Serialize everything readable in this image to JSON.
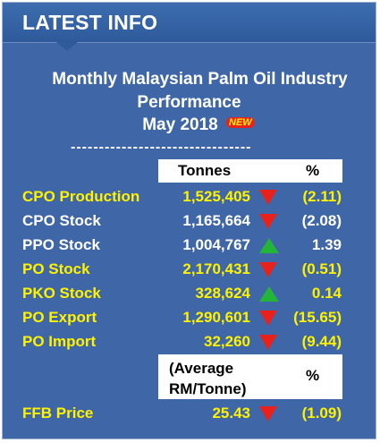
{
  "header": {
    "title": "LATEST INFO"
  },
  "report": {
    "title_line1": "Monthly Malaysian Palm Oil Industry",
    "title_line2": "Performance",
    "title_line3": "May 2018",
    "badge": "NEW",
    "divider": "--------------------------------"
  },
  "table": {
    "col_tonnes": "Tonnes",
    "col_pct": "%",
    "rows": [
      {
        "label": "CPO Production",
        "value": "1,525,405",
        "pct": "(2.11)",
        "trend": "down",
        "color": "#fff200"
      },
      {
        "label": "CPO Stock",
        "value": "1,165,664",
        "pct": "(2.08)",
        "trend": "down",
        "color": "#ffffff"
      },
      {
        "label": "PPO Stock",
        "value": "1,004,767",
        "pct": "1.39",
        "trend": "up",
        "color": "#ffffff"
      },
      {
        "label": "PO Stock",
        "value": "2,170,431",
        "pct": "(0.51)",
        "trend": "down",
        "color": "#fff200"
      },
      {
        "label": "PKO Stock",
        "value": "328,624",
        "pct": "0.14",
        "trend": "up",
        "color": "#fff200"
      },
      {
        "label": "PO Export",
        "value": "1,290,601",
        "pct": "(15.65)",
        "trend": "down",
        "color": "#fff200"
      },
      {
        "label": "PO Import",
        "value": "32,260",
        "pct": "(9.44)",
        "trend": "down",
        "color": "#fff200"
      }
    ],
    "col_avg": "(Average\nRM/Tonne)",
    "col_pct2": "%",
    "ffb": {
      "label": "FFB Price",
      "value": "25.43",
      "pct": "(1.09)",
      "trend": "down",
      "color": "#fff200"
    }
  }
}
